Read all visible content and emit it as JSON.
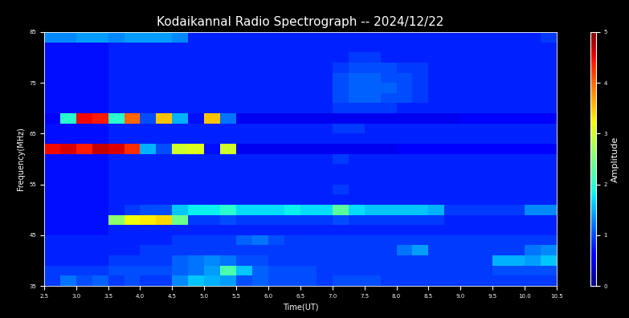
{
  "chart_data": {
    "type": "heatmap",
    "title": "Kodaikannal Radio Spectrograph -- 2024/12/22",
    "x_label": "Time(UT)",
    "y_label": "Frequency(MHz)",
    "x": [
      2.625,
      2.875,
      3.125,
      3.375,
      3.625,
      3.875,
      4.125,
      4.375,
      4.625,
      4.875,
      5.125,
      5.375,
      5.625,
      5.875,
      6.125,
      6.375,
      6.625,
      6.875,
      7.125,
      7.375,
      7.625,
      7.875,
      8.125,
      8.375,
      8.625,
      8.875,
      9.125,
      9.375,
      9.625,
      9.875,
      10.125,
      10.375
    ],
    "y": [
      36,
      38,
      40,
      42,
      44,
      46,
      48,
      50,
      52,
      54,
      56,
      58,
      60,
      62,
      64,
      66,
      68,
      70,
      72,
      74,
      76,
      78,
      80,
      82,
      84
    ],
    "values": [
      [
        0.9,
        1.2,
        1.0,
        1.1,
        0.9,
        1.0,
        0.9,
        0.9,
        1.3,
        1.6,
        1.5,
        1.4,
        1.0,
        1.1,
        1.0,
        1.0,
        1.0,
        0.9,
        1.0,
        1.0,
        1.0,
        0.9,
        0.9,
        0.9,
        0.9,
        0.9,
        0.9,
        0.9,
        0.9,
        0.9,
        0.9,
        0.9
      ],
      [
        0.9,
        0.9,
        0.9,
        0.9,
        1.0,
        1.0,
        1.0,
        1.0,
        1.1,
        1.2,
        1.4,
        2.2,
        1.6,
        1.1,
        1.0,
        1.0,
        1.0,
        0.9,
        0.9,
        0.9,
        0.9,
        0.9,
        0.9,
        0.9,
        0.9,
        0.9,
        0.9,
        0.9,
        1.0,
        1.0,
        1.0,
        1.0
      ],
      [
        0.8,
        0.8,
        0.8,
        0.8,
        0.9,
        0.9,
        0.9,
        0.9,
        1.1,
        1.2,
        1.3,
        1.2,
        1.0,
        1.0,
        0.9,
        0.9,
        0.9,
        0.9,
        0.9,
        0.9,
        0.9,
        0.9,
        0.9,
        0.9,
        0.9,
        0.9,
        0.9,
        0.9,
        1.5,
        1.5,
        1.4,
        1.6
      ],
      [
        0.8,
        0.8,
        0.8,
        0.8,
        0.8,
        0.8,
        0.9,
        0.9,
        0.9,
        0.9,
        0.9,
        0.9,
        0.9,
        0.9,
        0.9,
        0.9,
        0.9,
        0.9,
        0.9,
        0.9,
        0.9,
        0.9,
        1.2,
        1.4,
        0.9,
        0.9,
        0.9,
        0.9,
        0.9,
        0.9,
        1.2,
        1.3
      ],
      [
        0.8,
        0.8,
        0.8,
        0.8,
        0.8,
        0.8,
        0.8,
        0.8,
        0.9,
        0.9,
        0.9,
        0.9,
        1.1,
        1.2,
        1.0,
        0.9,
        0.9,
        0.9,
        0.9,
        0.9,
        0.9,
        0.9,
        0.9,
        0.9,
        0.9,
        0.9,
        0.9,
        0.9,
        0.9,
        0.9,
        0.9,
        0.9
      ],
      [
        0.7,
        0.7,
        0.7,
        0.7,
        0.8,
        0.8,
        0.8,
        0.8,
        0.8,
        0.8,
        0.8,
        0.8,
        0.8,
        0.8,
        0.8,
        0.8,
        0.8,
        0.8,
        0.8,
        0.8,
        0.8,
        0.8,
        0.8,
        0.8,
        0.8,
        0.8,
        0.8,
        0.8,
        0.8,
        0.8,
        0.8,
        0.8
      ],
      [
        0.7,
        0.7,
        0.7,
        0.7,
        2.6,
        3.2,
        3.3,
        3.4,
        2.4,
        0.9,
        0.9,
        1.0,
        0.9,
        0.9,
        0.9,
        0.9,
        0.9,
        0.9,
        1.0,
        0.9,
        0.9,
        0.9,
        0.9,
        0.9,
        0.9,
        0.8,
        0.8,
        0.8,
        0.8,
        0.8,
        0.8,
        0.8
      ],
      [
        0.7,
        0.7,
        0.7,
        0.7,
        0.8,
        0.9,
        1.0,
        1.0,
        1.6,
        1.8,
        1.8,
        2.0,
        1.7,
        1.7,
        1.7,
        1.8,
        1.7,
        1.7,
        2.3,
        1.7,
        1.6,
        1.6,
        1.6,
        1.6,
        1.5,
        0.9,
        0.9,
        0.9,
        0.9,
        0.9,
        1.3,
        1.3
      ],
      [
        0.7,
        0.7,
        0.7,
        0.7,
        0.8,
        0.8,
        0.8,
        0.8,
        0.8,
        0.8,
        0.8,
        0.8,
        0.8,
        0.8,
        0.8,
        0.8,
        0.8,
        0.8,
        0.8,
        0.8,
        0.8,
        0.8,
        0.8,
        0.8,
        0.8,
        0.8,
        0.8,
        0.8,
        0.8,
        0.8,
        0.8,
        0.8
      ],
      [
        0.7,
        0.7,
        0.7,
        0.7,
        0.8,
        0.8,
        0.8,
        0.8,
        0.8,
        0.8,
        0.8,
        0.8,
        0.8,
        0.8,
        0.8,
        0.8,
        0.8,
        0.8,
        0.9,
        0.8,
        0.8,
        0.8,
        0.8,
        0.8,
        0.8,
        0.8,
        0.8,
        0.8,
        0.8,
        0.8,
        0.8,
        0.8
      ],
      [
        0.7,
        0.7,
        0.7,
        0.7,
        0.8,
        0.8,
        0.8,
        0.8,
        0.8,
        0.8,
        0.8,
        0.8,
        0.8,
        0.8,
        0.8,
        0.8,
        0.8,
        0.8,
        0.8,
        0.8,
        0.8,
        0.8,
        0.8,
        0.8,
        0.8,
        0.8,
        0.8,
        0.8,
        0.8,
        0.8,
        0.8,
        0.8
      ],
      [
        0.7,
        0.7,
        0.7,
        0.7,
        0.8,
        0.8,
        0.8,
        0.8,
        0.8,
        0.8,
        0.8,
        0.8,
        0.8,
        0.8,
        0.8,
        0.8,
        0.8,
        0.8,
        0.8,
        0.8,
        0.8,
        0.8,
        0.8,
        0.8,
        0.8,
        0.8,
        0.8,
        0.8,
        0.8,
        0.8,
        0.8,
        0.8
      ],
      [
        0.7,
        0.7,
        0.7,
        0.7,
        0.8,
        0.8,
        0.8,
        0.8,
        0.8,
        0.8,
        0.8,
        0.8,
        0.8,
        0.8,
        0.8,
        0.8,
        0.8,
        0.8,
        0.9,
        0.8,
        0.8,
        0.8,
        0.8,
        0.8,
        0.8,
        0.8,
        0.8,
        0.8,
        0.8,
        0.8,
        0.8,
        0.8
      ],
      [
        4.5,
        4.6,
        4.4,
        4.7,
        4.6,
        4.3,
        1.5,
        1.0,
        3.0,
        3.1,
        0.7,
        3.0,
        0.5,
        0.5,
        0.5,
        0.5,
        0.5,
        0.5,
        0.5,
        0.5,
        0.5,
        0.5,
        0.6,
        0.6,
        0.6,
        0.6,
        0.6,
        0.6,
        0.6,
        0.6,
        0.6,
        0.6
      ],
      [
        0.7,
        0.7,
        0.7,
        0.7,
        0.8,
        0.8,
        0.8,
        0.8,
        0.8,
        0.8,
        0.8,
        0.8,
        0.8,
        0.8,
        0.8,
        0.8,
        0.8,
        0.8,
        0.8,
        0.8,
        0.8,
        0.8,
        0.8,
        0.8,
        0.8,
        0.8,
        0.8,
        0.8,
        0.8,
        0.8,
        0.8,
        0.8
      ],
      [
        0.7,
        0.7,
        0.7,
        0.7,
        0.8,
        0.8,
        0.8,
        0.8,
        0.8,
        0.8,
        0.8,
        0.8,
        0.8,
        0.8,
        0.8,
        0.8,
        0.8,
        0.8,
        0.9,
        0.9,
        0.8,
        0.8,
        0.8,
        0.8,
        0.8,
        0.8,
        0.8,
        0.8,
        0.8,
        0.8,
        0.8,
        0.8
      ],
      [
        0.6,
        2.0,
        4.5,
        4.4,
        2.0,
        4.0,
        1.0,
        3.5,
        1.5,
        0.7,
        3.5,
        1.2,
        0.5,
        0.5,
        0.5,
        0.5,
        0.5,
        0.5,
        0.5,
        0.5,
        0.5,
        0.5,
        0.5,
        0.5,
        0.5,
        0.5,
        0.6,
        0.6,
        0.6,
        0.6,
        0.6,
        0.6
      ],
      [
        0.7,
        0.7,
        0.7,
        0.7,
        0.8,
        0.8,
        0.8,
        0.8,
        0.8,
        0.8,
        0.8,
        0.8,
        0.8,
        0.8,
        0.8,
        0.8,
        0.8,
        0.8,
        0.9,
        0.9,
        0.9,
        0.9,
        0.8,
        0.8,
        0.8,
        0.8,
        0.8,
        0.8,
        0.8,
        0.8,
        0.8,
        0.8
      ],
      [
        0.7,
        0.7,
        0.7,
        0.7,
        0.8,
        0.8,
        0.8,
        0.8,
        0.8,
        0.8,
        0.8,
        0.8,
        0.8,
        0.8,
        0.8,
        0.8,
        0.8,
        0.8,
        1.0,
        1.1,
        1.1,
        1.0,
        1.0,
        0.9,
        0.8,
        0.8,
        0.8,
        0.8,
        0.8,
        0.8,
        0.8,
        0.8
      ],
      [
        0.7,
        0.7,
        0.7,
        0.7,
        0.8,
        0.8,
        0.8,
        0.8,
        0.8,
        0.8,
        0.8,
        0.8,
        0.8,
        0.8,
        0.8,
        0.8,
        0.8,
        0.8,
        1.0,
        1.1,
        1.1,
        1.1,
        1.0,
        0.9,
        0.8,
        0.8,
        0.8,
        0.8,
        0.8,
        0.8,
        0.8,
        0.8
      ],
      [
        0.7,
        0.7,
        0.7,
        0.7,
        0.8,
        0.8,
        0.8,
        0.8,
        0.8,
        0.8,
        0.8,
        0.8,
        0.8,
        0.8,
        0.8,
        0.8,
        0.8,
        0.8,
        1.0,
        1.1,
        1.1,
        1.0,
        1.0,
        0.9,
        0.8,
        0.8,
        0.8,
        0.8,
        0.8,
        0.8,
        0.8,
        0.8
      ],
      [
        0.7,
        0.7,
        0.7,
        0.7,
        0.8,
        0.8,
        0.8,
        0.8,
        0.8,
        0.8,
        0.8,
        0.8,
        0.8,
        0.8,
        0.8,
        0.8,
        0.8,
        0.8,
        0.9,
        1.0,
        1.0,
        1.0,
        0.9,
        0.9,
        0.8,
        0.8,
        0.8,
        0.8,
        0.8,
        0.8,
        0.8,
        0.8
      ],
      [
        0.7,
        0.7,
        0.7,
        0.7,
        0.8,
        0.8,
        0.8,
        0.8,
        0.8,
        0.8,
        0.8,
        0.8,
        0.8,
        0.8,
        0.8,
        0.8,
        0.8,
        0.8,
        0.8,
        0.9,
        0.9,
        0.8,
        0.8,
        0.8,
        0.8,
        0.8,
        0.8,
        0.8,
        0.8,
        0.8,
        0.8,
        0.8
      ],
      [
        0.7,
        0.7,
        0.7,
        0.7,
        0.8,
        0.8,
        0.8,
        0.8,
        0.8,
        0.8,
        0.8,
        0.8,
        0.8,
        0.8,
        0.8,
        0.8,
        0.8,
        0.8,
        0.8,
        0.8,
        0.8,
        0.8,
        0.8,
        0.8,
        0.8,
        0.8,
        0.8,
        0.8,
        0.8,
        0.8,
        0.8,
        0.8
      ],
      [
        1.3,
        1.3,
        1.4,
        1.4,
        1.3,
        1.4,
        1.4,
        1.4,
        1.3,
        0.8,
        0.8,
        0.8,
        0.8,
        0.8,
        0.8,
        0.8,
        0.8,
        0.8,
        0.8,
        0.8,
        0.8,
        0.8,
        0.8,
        0.8,
        0.8,
        0.8,
        0.8,
        0.8,
        0.8,
        0.8,
        0.8,
        0.9
      ]
    ],
    "xlim": [
      2.5,
      10.5
    ],
    "xticks": [
      2.5,
      {
        "value": 3,
        "label": "3.0"
      },
      3.5,
      {
        "value": 4,
        "label": "4.0"
      },
      4.5,
      {
        "value": 5,
        "label": "5.0"
      },
      5.5,
      {
        "value": 6,
        "label": "6.0"
      },
      6.5,
      {
        "value": 7,
        "label": "7.0"
      },
      7.5,
      {
        "value": 8,
        "label": "8.0"
      },
      8.5,
      {
        "value": 9,
        "label": "9.0"
      },
      9.5,
      {
        "value": 10,
        "label": "10.0"
      },
      10.5
    ],
    "ylim": [
      35,
      85
    ],
    "yticks": [
      35,
      45,
      55,
      65,
      75,
      85
    ],
    "color_range": [
      0,
      5
    ],
    "color_ticks": [
      0,
      1,
      2,
      3,
      4,
      5
    ],
    "color_label": "Amplitude"
  }
}
